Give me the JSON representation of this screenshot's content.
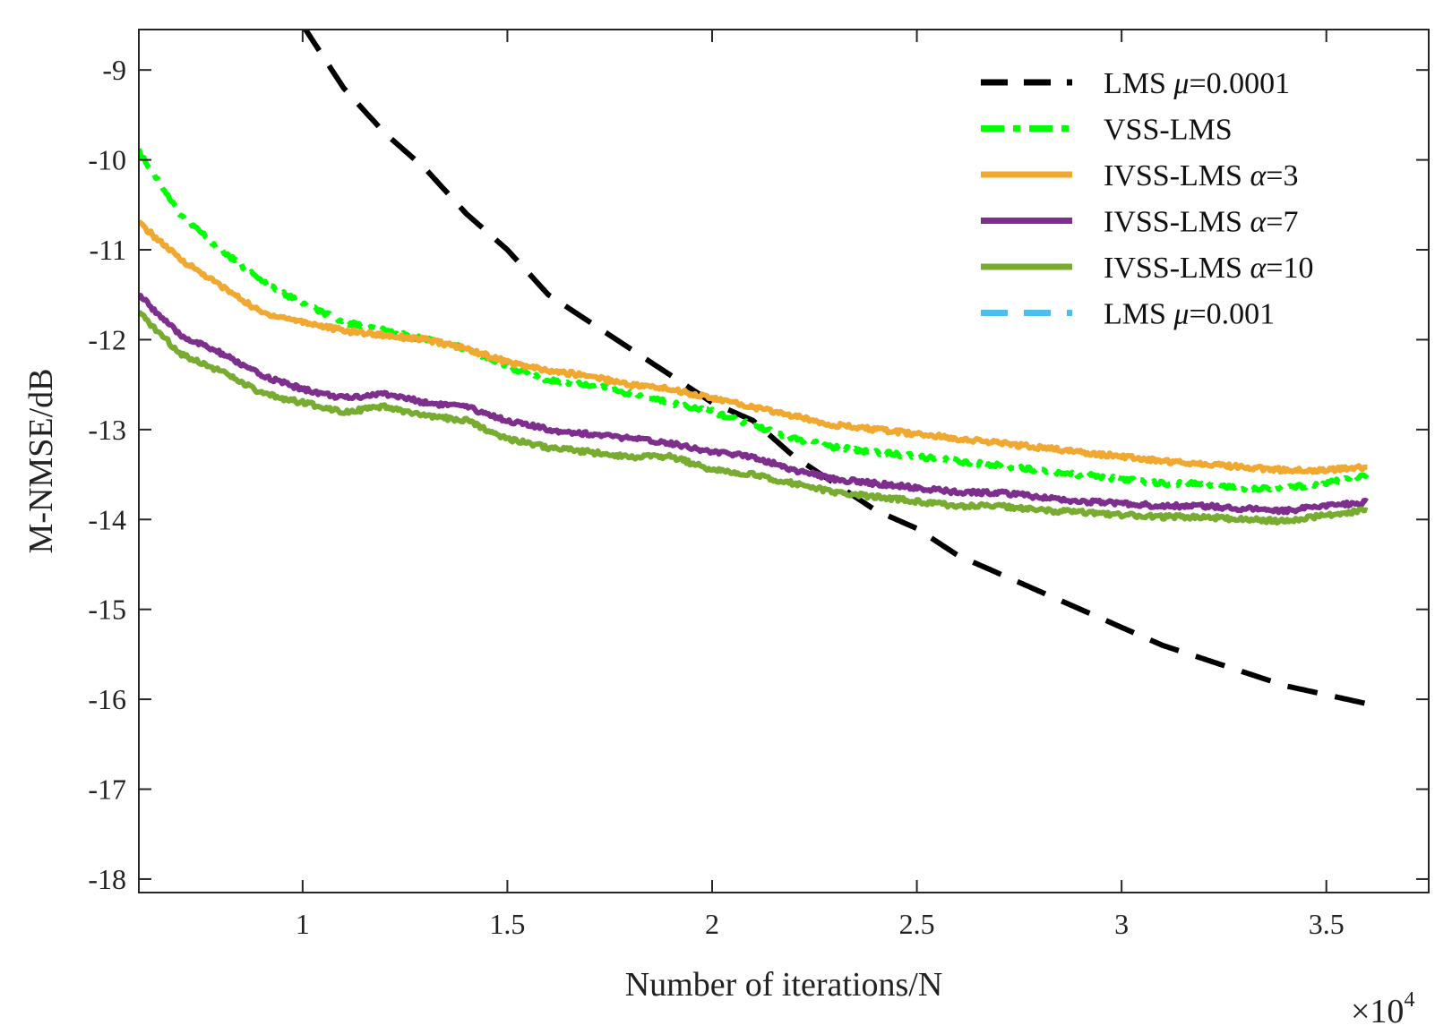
{
  "chart_data": {
    "type": "line",
    "xlabel": "Number of iterations/N",
    "ylabel": "M-NMSE/dB",
    "x_multiplier": "×10",
    "x_multiplier_exp": "4",
    "xlim": [
      0.6,
      3.75
    ],
    "ylim": [
      -18.15,
      -8.55
    ],
    "xticks": [
      1,
      1.5,
      2,
      2.5,
      3,
      3.5
    ],
    "xtick_labels": [
      "1",
      "1.5",
      "2",
      "2.5",
      "3",
      "3.5"
    ],
    "yticks": [
      -9,
      -10,
      -11,
      -12,
      -13,
      -14,
      -15,
      -16,
      -17,
      -18
    ],
    "ytick_labels": [
      "-9",
      "-10",
      "-11",
      "-12",
      "-13",
      "-14",
      "-15",
      "-16",
      "-17",
      "-18"
    ],
    "legend_position": "top-right",
    "series": [
      {
        "name": "LMS μ=0.0001",
        "legend_base": "LMS ",
        "legend_symbol": "μ",
        "legend_suffix": "=0.0001",
        "color": "#000000",
        "dash": "dash",
        "x": [
          1.0,
          1.1,
          1.2,
          1.3,
          1.4,
          1.5,
          1.6,
          1.7,
          1.8,
          1.9,
          2.0,
          2.1,
          2.2,
          2.3,
          2.4,
          2.5,
          2.6,
          2.7,
          2.8,
          2.9,
          3.0,
          3.1,
          3.2,
          3.3,
          3.4,
          3.5,
          3.6
        ],
        "y": [
          -8.5,
          -9.2,
          -9.7,
          -10.1,
          -10.6,
          -11.0,
          -11.5,
          -11.8,
          -12.1,
          -12.4,
          -12.7,
          -12.9,
          -13.3,
          -13.6,
          -13.9,
          -14.1,
          -14.4,
          -14.6,
          -14.8,
          -15.0,
          -15.2,
          -15.4,
          -15.55,
          -15.7,
          -15.85,
          -15.95,
          -16.05
        ]
      },
      {
        "name": "VSS-LMS",
        "legend_base": "VSS-LMS",
        "legend_symbol": "",
        "legend_suffix": "",
        "color": "#00ff00",
        "dash": "dashdot",
        "x": [
          0.6,
          0.7,
          0.8,
          0.9,
          1.0,
          1.1,
          1.2,
          1.3,
          1.4,
          1.5,
          1.6,
          1.7,
          1.8,
          1.9,
          2.0,
          2.1,
          2.2,
          2.3,
          2.4,
          2.5,
          2.6,
          2.7,
          2.8,
          2.9,
          3.0,
          3.1,
          3.2,
          3.3,
          3.4,
          3.5,
          3.6
        ],
        "y": [
          -9.9,
          -10.6,
          -11.0,
          -11.35,
          -11.6,
          -11.8,
          -11.9,
          -12.0,
          -12.1,
          -12.3,
          -12.45,
          -12.5,
          -12.6,
          -12.7,
          -12.8,
          -12.95,
          -13.1,
          -13.2,
          -13.25,
          -13.3,
          -13.35,
          -13.4,
          -13.45,
          -13.5,
          -13.55,
          -13.6,
          -13.6,
          -13.65,
          -13.65,
          -13.6,
          -13.5
        ]
      },
      {
        "name": "IVSS-LMS α=3",
        "legend_base": "IVSS-LMS ",
        "legend_symbol": "α",
        "legend_suffix": "=3",
        "color": "#f0a830",
        "dash": "solid",
        "x": [
          0.6,
          0.7,
          0.8,
          0.9,
          1.0,
          1.1,
          1.2,
          1.3,
          1.4,
          1.5,
          1.6,
          1.7,
          1.8,
          1.9,
          2.0,
          2.1,
          2.2,
          2.3,
          2.4,
          2.5,
          2.6,
          2.7,
          2.8,
          2.9,
          3.0,
          3.1,
          3.2,
          3.3,
          3.4,
          3.5,
          3.6
        ],
        "y": [
          -10.7,
          -11.1,
          -11.4,
          -11.7,
          -11.8,
          -11.9,
          -11.95,
          -12.0,
          -12.1,
          -12.25,
          -12.35,
          -12.4,
          -12.5,
          -12.55,
          -12.65,
          -12.75,
          -12.85,
          -12.95,
          -13.0,
          -13.05,
          -13.1,
          -13.15,
          -13.2,
          -13.25,
          -13.3,
          -13.35,
          -13.38,
          -13.42,
          -13.45,
          -13.45,
          -13.42
        ]
      },
      {
        "name": "IVSS-LMS α=7",
        "legend_base": "IVSS-LMS ",
        "legend_symbol": "α",
        "legend_suffix": "=7",
        "color": "#7e2f8e",
        "dash": "solid",
        "x": [
          0.6,
          0.7,
          0.8,
          0.9,
          1.0,
          1.1,
          1.2,
          1.3,
          1.4,
          1.5,
          1.6,
          1.7,
          1.8,
          1.9,
          2.0,
          2.1,
          2.2,
          2.3,
          2.4,
          2.5,
          2.6,
          2.7,
          2.8,
          2.9,
          3.0,
          3.1,
          3.2,
          3.3,
          3.4,
          3.5,
          3.6
        ],
        "y": [
          -11.5,
          -11.95,
          -12.15,
          -12.4,
          -12.55,
          -12.65,
          -12.6,
          -12.7,
          -12.75,
          -12.9,
          -13.0,
          -13.05,
          -13.1,
          -13.15,
          -13.25,
          -13.3,
          -13.45,
          -13.55,
          -13.6,
          -13.65,
          -13.7,
          -13.7,
          -13.75,
          -13.8,
          -13.82,
          -13.85,
          -13.85,
          -13.88,
          -13.9,
          -13.85,
          -13.8
        ]
      },
      {
        "name": "IVSS-LMS α=10",
        "legend_base": "IVSS-LMS ",
        "legend_symbol": "α",
        "legend_suffix": "=10",
        "color": "#77ac30",
        "dash": "solid",
        "x": [
          0.6,
          0.7,
          0.8,
          0.9,
          1.0,
          1.1,
          1.2,
          1.3,
          1.4,
          1.5,
          1.6,
          1.7,
          1.8,
          1.9,
          2.0,
          2.1,
          2.2,
          2.3,
          2.4,
          2.5,
          2.6,
          2.7,
          2.8,
          2.9,
          3.0,
          3.1,
          3.2,
          3.3,
          3.4,
          3.5,
          3.6
        ],
        "y": [
          -11.7,
          -12.15,
          -12.35,
          -12.6,
          -12.7,
          -12.8,
          -12.75,
          -12.85,
          -12.9,
          -13.1,
          -13.2,
          -13.25,
          -13.3,
          -13.3,
          -13.45,
          -13.5,
          -13.6,
          -13.7,
          -13.75,
          -13.8,
          -13.85,
          -13.85,
          -13.9,
          -13.92,
          -13.95,
          -13.97,
          -13.97,
          -14.0,
          -14.02,
          -13.95,
          -13.9
        ]
      },
      {
        "name": "LMS μ=0.001",
        "legend_base": "LMS ",
        "legend_symbol": "μ",
        "legend_suffix": "=0.001",
        "color": "#4dbeee",
        "dash": "dash",
        "x": [],
        "y": []
      }
    ]
  }
}
